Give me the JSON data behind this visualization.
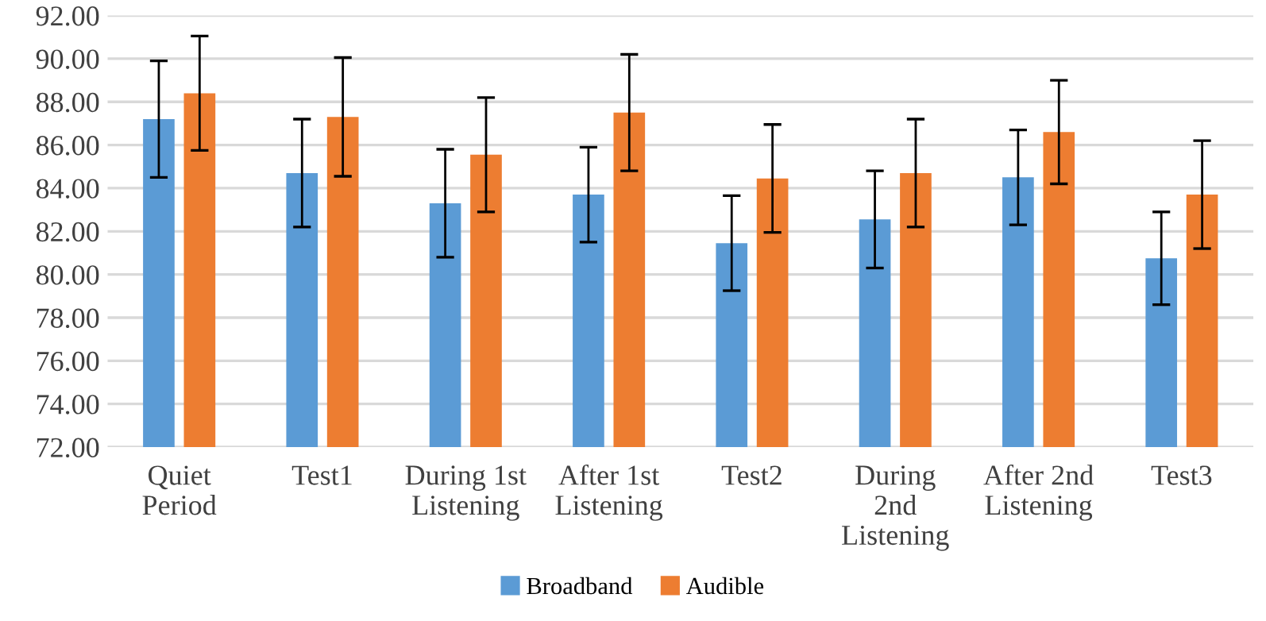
{
  "chart_data": {
    "type": "bar",
    "categories": [
      "Quiet\nPeriod",
      "Test1",
      "During 1st\nListening",
      "After 1st\nListening",
      "Test2",
      "During\n2nd\nListening",
      "After 2nd\nListening",
      "Test3"
    ],
    "series": [
      {
        "name": "Broadband",
        "color": "#5b9bd5",
        "values": [
          87.2,
          84.7,
          83.3,
          83.7,
          81.45,
          82.55,
          84.5,
          80.75
        ],
        "errors": [
          2.7,
          2.5,
          2.5,
          2.2,
          2.2,
          2.25,
          2.2,
          2.15
        ]
      },
      {
        "name": "Audible",
        "color": "#ed7d31",
        "values": [
          88.4,
          87.3,
          85.55,
          87.5,
          84.45,
          84.7,
          86.6,
          83.7
        ],
        "errors": [
          2.65,
          2.75,
          2.65,
          2.7,
          2.5,
          2.5,
          2.4,
          2.5
        ]
      }
    ],
    "ylim": [
      72,
      92
    ],
    "yticks": [
      {
        "value": 72,
        "label": "72.00"
      },
      {
        "value": 74,
        "label": "74.00"
      },
      {
        "value": 76,
        "label": "76.00"
      },
      {
        "value": 78,
        "label": "78.00"
      },
      {
        "value": 80,
        "label": "80.00"
      },
      {
        "value": 82,
        "label": "82.00"
      },
      {
        "value": 84,
        "label": "84.00"
      },
      {
        "value": 86,
        "label": "86.00"
      },
      {
        "value": 88,
        "label": "88.00"
      },
      {
        "value": 90,
        "label": "90.00"
      },
      {
        "value": 92,
        "label": "92.00"
      }
    ],
    "grid": "y",
    "legend": "bottom"
  }
}
